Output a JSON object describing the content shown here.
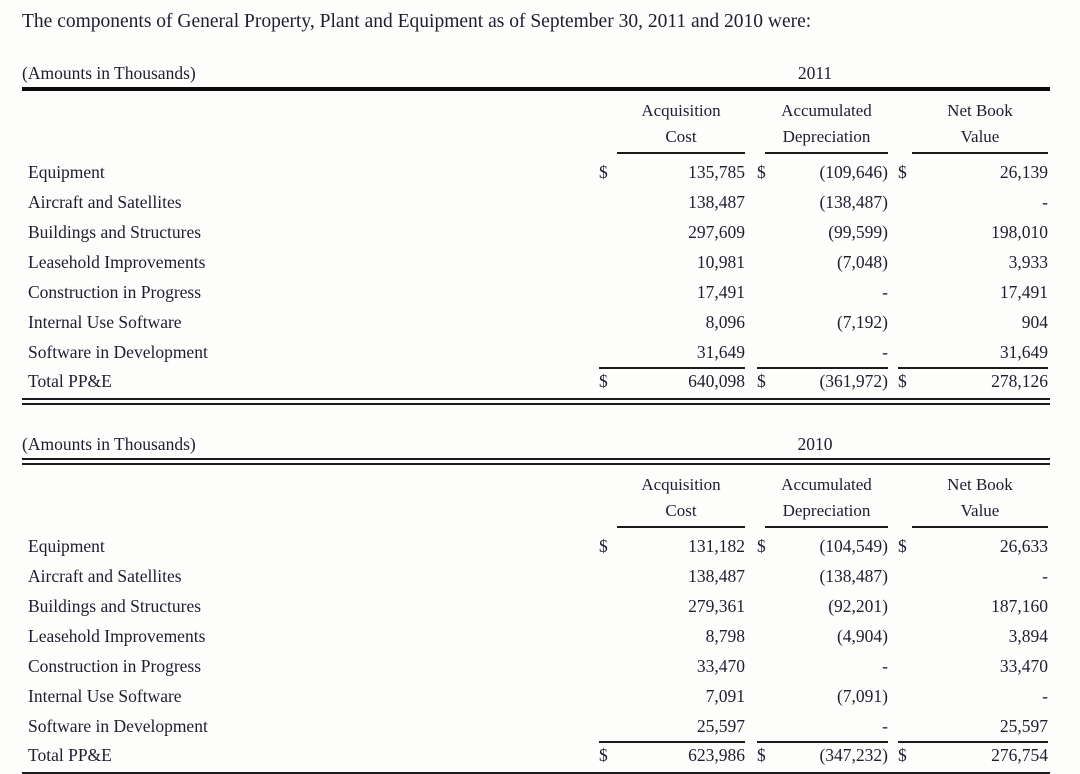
{
  "document": {
    "title": "The components of General Property, Plant and Equipment as of September 30, 2011 and 2010 were:"
  },
  "tables": [
    {
      "caption_left": "(Amounts in Thousands)",
      "year": "2011",
      "columns": [
        {
          "line1": "Acquisition",
          "line2": "Cost"
        },
        {
          "line1": "Accumulated",
          "line2": "Depreciation"
        },
        {
          "line1": "Net Book",
          "line2": "Value"
        }
      ],
      "rows": [
        {
          "label": "Equipment",
          "d1": "$",
          "cost": "135,785",
          "d2": "$",
          "dep": "(109,646)",
          "d3": "$",
          "nbv": "26,139"
        },
        {
          "label": "Aircraft and Satellites",
          "cost": "138,487",
          "dep": "(138,487)",
          "nbv": "-"
        },
        {
          "label": "Buildings and Structures",
          "cost": "297,609",
          "dep": "(99,599)",
          "nbv": "198,010"
        },
        {
          "label": "Leasehold Improvements",
          "cost": "10,981",
          "dep": "(7,048)",
          "nbv": "3,933"
        },
        {
          "label": "Construction in Progress",
          "cost": "17,491",
          "dep": "-",
          "nbv": "17,491"
        },
        {
          "label": "Internal Use Software",
          "cost": "8,096",
          "dep": "(7,192)",
          "nbv": "904"
        },
        {
          "label": "Software in Development",
          "cost": "31,649",
          "dep": "-",
          "nbv": "31,649"
        }
      ],
      "total": {
        "label": "Total PP&E",
        "d1": "$",
        "cost": "640,098",
        "d2": "$",
        "dep": "(361,972)",
        "d3": "$",
        "nbv": "278,126"
      }
    },
    {
      "caption_left": "(Amounts in Thousands)",
      "year": "2010",
      "columns": [
        {
          "line1": "Acquisition",
          "line2": "Cost"
        },
        {
          "line1": "Accumulated",
          "line2": "Depreciation"
        },
        {
          "line1": "Net Book",
          "line2": "Value"
        }
      ],
      "rows": [
        {
          "label": "Equipment",
          "d1": "$",
          "cost": "131,182",
          "d2": "$",
          "dep": "(104,549)",
          "d3": "$",
          "nbv": "26,633"
        },
        {
          "label": "Aircraft and Satellites",
          "cost": "138,487",
          "dep": "(138,487)",
          "nbv": "-"
        },
        {
          "label": "Buildings and Structures",
          "cost": "279,361",
          "dep": "(92,201)",
          "nbv": "187,160"
        },
        {
          "label": "Leasehold Improvements",
          "cost": "8,798",
          "dep": "(4,904)",
          "nbv": "3,894"
        },
        {
          "label": "Construction in Progress",
          "cost": "33,470",
          "dep": "-",
          "nbv": "33,470"
        },
        {
          "label": "Internal Use Software",
          "cost": "7,091",
          "dep": "(7,091)",
          "nbv": "-"
        },
        {
          "label": "Software in Development",
          "cost": "25,597",
          "dep": "-",
          "nbv": "25,597"
        }
      ],
      "total": {
        "label": "Total PP&E",
        "d1": "$",
        "cost": "623,986",
        "d2": "$",
        "dep": "(347,232)",
        "d3": "$",
        "nbv": "276,754"
      }
    }
  ]
}
